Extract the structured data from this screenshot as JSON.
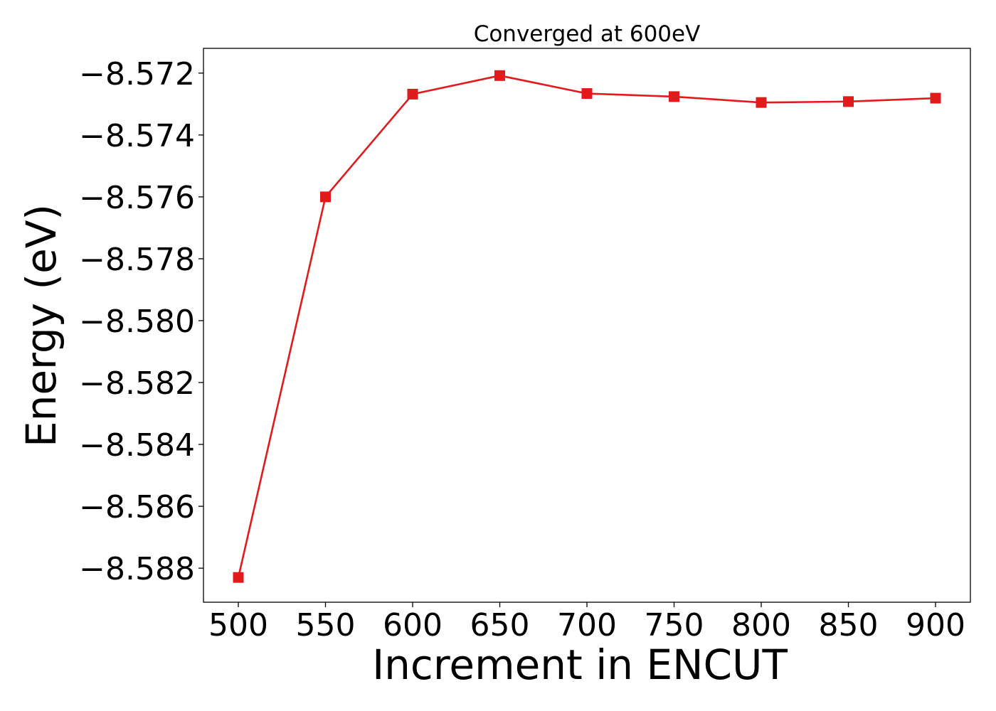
{
  "chart_data": {
    "type": "line",
    "title": "Converged at 600eV",
    "xlabel": "Increment in ENCUT",
    "ylabel": "Energy (eV)",
    "x": [
      500,
      550,
      600,
      650,
      700,
      750,
      800,
      850,
      900
    ],
    "series": [
      {
        "values": [
          -8.5883,
          -8.576,
          -8.57268,
          -8.57208,
          -8.57266,
          -8.57276,
          -8.57295,
          -8.57292,
          -8.57281
        ],
        "color": "#e31a1c",
        "marker": "square"
      }
    ],
    "xticks": [
      500,
      550,
      600,
      650,
      700,
      750,
      800,
      850,
      900
    ],
    "xtick_labels": [
      "500",
      "550",
      "600",
      "650",
      "700",
      "750",
      "800",
      "850",
      "900"
    ],
    "yticks": [
      -8.572,
      -8.574,
      -8.576,
      -8.578,
      -8.58,
      -8.582,
      -8.584,
      -8.586,
      -8.588
    ],
    "ytick_labels": [
      "−8.572",
      "−8.574",
      "−8.576",
      "−8.578",
      "−8.580",
      "−8.582",
      "−8.584",
      "−8.586",
      "−8.588"
    ],
    "xlim": [
      480,
      920
    ],
    "ylim": [
      -8.5891,
      -8.5712
    ],
    "grid": false,
    "legend": "none"
  }
}
